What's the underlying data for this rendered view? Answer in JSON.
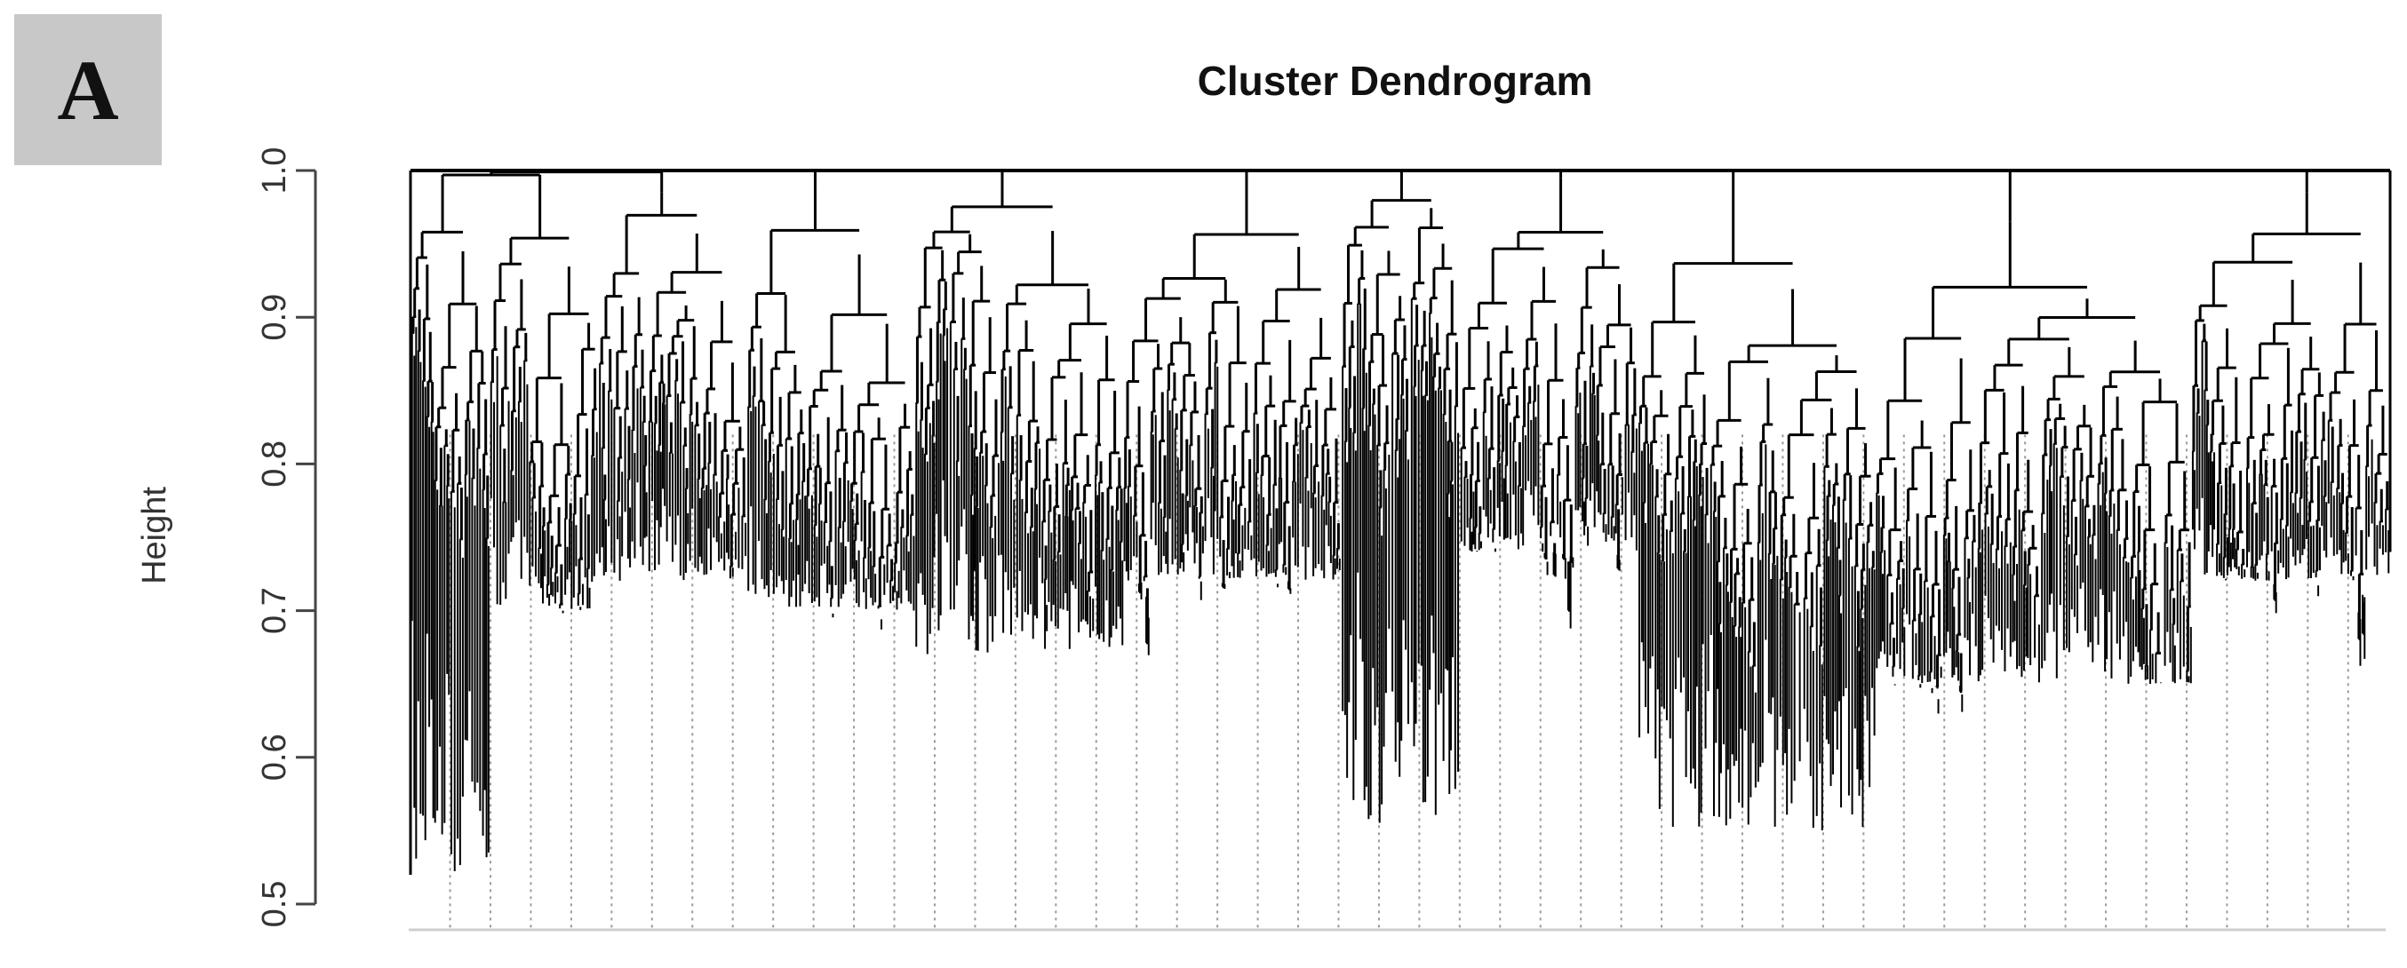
{
  "panel_label": "A",
  "chart_data": {
    "type": "dendrogram",
    "title": "Cluster Dendrogram",
    "ylabel": "Height",
    "xlabel": "",
    "ylim": [
      0.5,
      1.0
    ],
    "yticks": [
      "0.5",
      "0.6",
      "0.7",
      "0.8",
      "0.9",
      "1.0"
    ],
    "grid": false,
    "leaf_guides": "dotted",
    "root_height": 1.0,
    "clusters": [
      {
        "span": [
          0.0,
          0.04
        ],
        "top": 0.995,
        "floor": 0.52,
        "density": 0.9
      },
      {
        "span": [
          0.04,
          0.095
        ],
        "top": 0.99,
        "floor": 0.7,
        "density": 0.9
      },
      {
        "span": [
          0.095,
          0.17
        ],
        "top": 0.985,
        "floor": 0.72,
        "density": 0.85
      },
      {
        "span": [
          0.17,
          0.255
        ],
        "top": 0.99,
        "floor": 0.7,
        "density": 0.9
      },
      {
        "span": [
          0.255,
          0.36
        ],
        "top": 0.99,
        "floor": 0.67,
        "density": 0.9
      },
      {
        "span": [
          0.36,
          0.47
        ],
        "top": 0.99,
        "floor": 0.72,
        "density": 0.85
      },
      {
        "span": [
          0.47,
          0.53
        ],
        "top": 0.99,
        "floor": 0.55,
        "density": 0.6
      },
      {
        "span": [
          0.53,
          0.62
        ],
        "top": 0.995,
        "floor": 0.74,
        "density": 0.9
      },
      {
        "span": [
          0.62,
          0.74
        ],
        "top": 0.98,
        "floor": 0.55,
        "density": 0.7
      },
      {
        "span": [
          0.74,
          0.9
        ],
        "top": 0.965,
        "floor": 0.65,
        "density": 0.6
      },
      {
        "span": [
          0.9,
          1.0
        ],
        "top": 0.985,
        "floor": 0.72,
        "density": 0.9
      }
    ]
  }
}
